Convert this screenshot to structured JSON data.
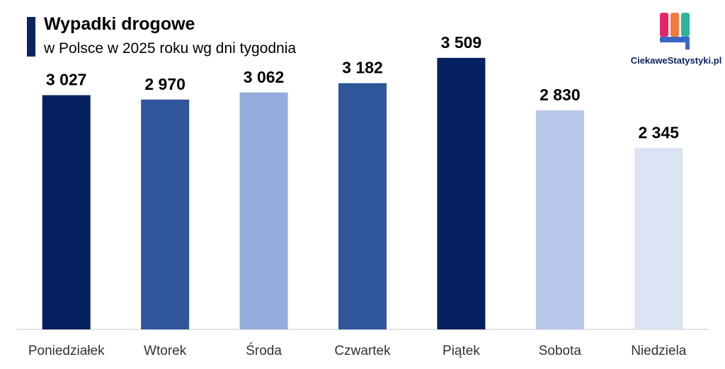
{
  "header": {
    "title": "Wypadki drogowe",
    "subtitle": "w Polsce w 2025 roku wg dni tygodnia"
  },
  "logo": {
    "text": "CiekaweStatystyki.pl",
    "colors": [
      "#e5246b",
      "#f47b3d",
      "#2bb5a0",
      "#3a66c4"
    ]
  },
  "chart_data": {
    "type": "bar",
    "title": "Wypadki drogowe",
    "subtitle": "w Polsce w 2025 roku wg dni tygodnia",
    "categories": [
      "Poniedziałek",
      "Wtorek",
      "Środa",
      "Czwartek",
      "Piątek",
      "Sobota",
      "Niedziela"
    ],
    "values": [
      3027,
      2970,
      3062,
      3182,
      3509,
      2830,
      2345
    ],
    "value_labels": [
      "3 027",
      "2 970",
      "3 062",
      "3 182",
      "3 509",
      "2 830",
      "2 345"
    ],
    "colors": [
      "#04205f",
      "#2f569b",
      "#93acdb",
      "#2f569b",
      "#04205f",
      "#b7c8ea",
      "#dbe3f4"
    ],
    "ylim": [
      0,
      3800
    ],
    "grid": false,
    "legend": "none"
  }
}
